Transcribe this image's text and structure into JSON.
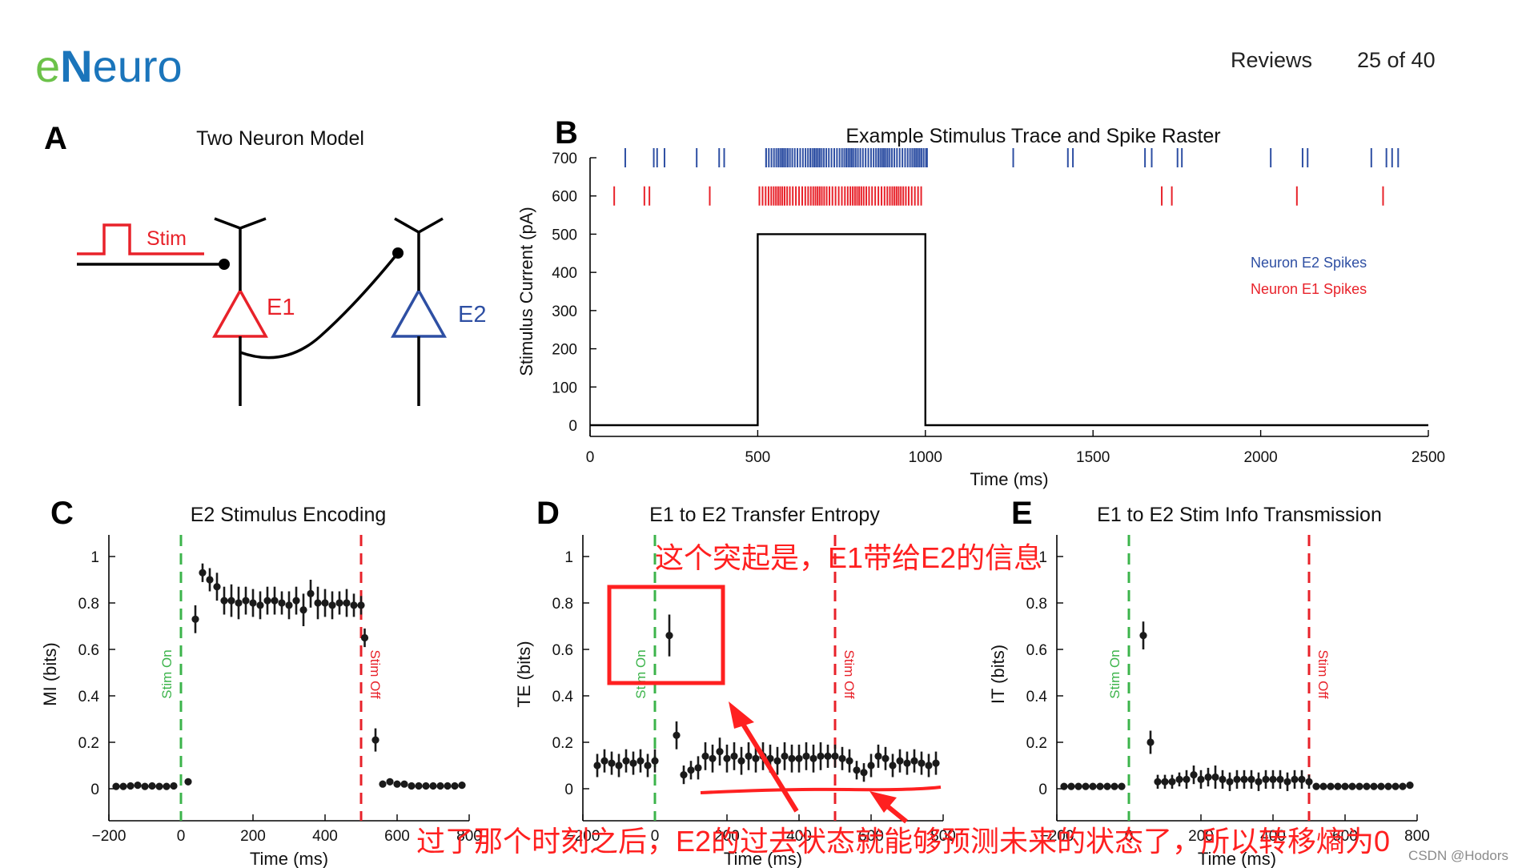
{
  "header": {
    "logo_e": "e",
    "logo_n": "N",
    "logo_rest": "euro",
    "section": "Reviews",
    "page": "25 of 40",
    "colors": {
      "logo_green": "#6cc24a",
      "logo_blue": "#1b75bb"
    }
  },
  "panels": {
    "a": {
      "letter": "A",
      "title": "Two Neuron Model",
      "stim_label": "Stim",
      "e1_label": "E1",
      "e2_label": "E2"
    },
    "b": {
      "letter": "B"
    },
    "c": {
      "letter": "C"
    },
    "d": {
      "letter": "D"
    },
    "e": {
      "letter": "E"
    }
  },
  "colors": {
    "e1_red": "#e8222a",
    "e2_blue": "#2e4fa3",
    "stim_on_green": "#3cb44b",
    "stim_off_red": "#e8222a",
    "point": "#1a1a1a",
    "annotation": "#ff2020"
  },
  "chart_data": [
    {
      "id": "B",
      "type": "line",
      "title": "Example Stimulus Trace and Spike Raster",
      "xlabel": "Time (ms)",
      "ylabel": "Stimulus Current (pA)",
      "xlim": [
        0,
        2500
      ],
      "ylim": [
        0,
        700
      ],
      "xticks": [
        0,
        500,
        1000,
        1500,
        2000,
        2500
      ],
      "yticks": [
        0,
        100,
        200,
        300,
        400,
        500,
        600,
        700
      ],
      "stimulus": {
        "x": [
          0,
          500,
          500,
          1000,
          1000,
          2500
        ],
        "y": [
          0,
          0,
          500,
          500,
          0,
          0
        ]
      },
      "legend": {
        "position": "right",
        "entries": [
          {
            "label": "Neuron E2 Spikes",
            "color": "#2e4fa3"
          },
          {
            "label": "Neuron E1 Spikes",
            "color": "#e8222a"
          }
        ]
      },
      "raster": [
        {
          "name": "Neuron E2 Spikes",
          "y": 700,
          "color": "#2e4fa3",
          "times": [
            105,
            190,
            200,
            222,
            318,
            385,
            400,
            525,
            1005,
            1262,
            1425,
            1440,
            1655,
            1675,
            1752,
            1765,
            2030,
            2125,
            2140,
            2330,
            2375,
            2392,
            2410
          ],
          "burst": {
            "start": 525,
            "end": 1005,
            "count": 72
          }
        },
        {
          "name": "Neuron E1 Spikes",
          "y": 600,
          "color": "#e8222a",
          "times": [
            72,
            162,
            177,
            357,
            1705,
            1735,
            2108,
            2365
          ],
          "burst": {
            "start": 505,
            "end": 985,
            "count": 62
          }
        }
      ]
    },
    {
      "id": "C",
      "type": "scatter",
      "title": "E2 Stimulus Encoding",
      "xlabel": "Time (ms)",
      "ylabel": "MI (bits)",
      "xlim": [
        -200,
        800
      ],
      "ylim": [
        0,
        1
      ],
      "xticks": [
        -200,
        0,
        200,
        400,
        600,
        800
      ],
      "yticks": [
        0,
        0.2,
        0.4,
        0.6,
        0.8,
        1
      ],
      "markers": [
        {
          "x": 0,
          "label": "Stim On",
          "color": "#3cb44b"
        },
        {
          "x": 500,
          "label": "Stim Off",
          "color": "#e8222a"
        }
      ],
      "points": [
        {
          "x": -180,
          "y": 0.01,
          "e": 0.01
        },
        {
          "x": -160,
          "y": 0.01,
          "e": 0.01
        },
        {
          "x": -140,
          "y": 0.012,
          "e": 0.01
        },
        {
          "x": -120,
          "y": 0.015,
          "e": 0.012
        },
        {
          "x": -100,
          "y": 0.01,
          "e": 0.01
        },
        {
          "x": -80,
          "y": 0.012,
          "e": 0.01
        },
        {
          "x": -60,
          "y": 0.01,
          "e": 0.01
        },
        {
          "x": -40,
          "y": 0.01,
          "e": 0.01
        },
        {
          "x": -20,
          "y": 0.012,
          "e": 0.01
        },
        {
          "x": 20,
          "y": 0.03,
          "e": 0.015
        },
        {
          "x": 40,
          "y": 0.73,
          "e": 0.06
        },
        {
          "x": 60,
          "y": 0.93,
          "e": 0.04
        },
        {
          "x": 80,
          "y": 0.9,
          "e": 0.05
        },
        {
          "x": 100,
          "y": 0.87,
          "e": 0.06
        },
        {
          "x": 120,
          "y": 0.81,
          "e": 0.06
        },
        {
          "x": 140,
          "y": 0.81,
          "e": 0.07
        },
        {
          "x": 160,
          "y": 0.8,
          "e": 0.07
        },
        {
          "x": 180,
          "y": 0.81,
          "e": 0.06
        },
        {
          "x": 200,
          "y": 0.8,
          "e": 0.06
        },
        {
          "x": 220,
          "y": 0.79,
          "e": 0.06
        },
        {
          "x": 240,
          "y": 0.81,
          "e": 0.06
        },
        {
          "x": 260,
          "y": 0.81,
          "e": 0.06
        },
        {
          "x": 280,
          "y": 0.8,
          "e": 0.05
        },
        {
          "x": 300,
          "y": 0.79,
          "e": 0.06
        },
        {
          "x": 320,
          "y": 0.81,
          "e": 0.06
        },
        {
          "x": 340,
          "y": 0.77,
          "e": 0.07
        },
        {
          "x": 360,
          "y": 0.84,
          "e": 0.06
        },
        {
          "x": 380,
          "y": 0.8,
          "e": 0.07
        },
        {
          "x": 400,
          "y": 0.8,
          "e": 0.06
        },
        {
          "x": 420,
          "y": 0.79,
          "e": 0.06
        },
        {
          "x": 440,
          "y": 0.8,
          "e": 0.05
        },
        {
          "x": 460,
          "y": 0.8,
          "e": 0.06
        },
        {
          "x": 480,
          "y": 0.79,
          "e": 0.05
        },
        {
          "x": 500,
          "y": 0.79,
          "e": 0.04
        },
        {
          "x": 510,
          "y": 0.65,
          "e": 0.04
        },
        {
          "x": 540,
          "y": 0.21,
          "e": 0.05
        },
        {
          "x": 560,
          "y": 0.02,
          "e": 0.015
        },
        {
          "x": 580,
          "y": 0.03,
          "e": 0.015
        },
        {
          "x": 600,
          "y": 0.02,
          "e": 0.015
        },
        {
          "x": 620,
          "y": 0.02,
          "e": 0.01
        },
        {
          "x": 640,
          "y": 0.012,
          "e": 0.01
        },
        {
          "x": 660,
          "y": 0.012,
          "e": 0.01
        },
        {
          "x": 680,
          "y": 0.012,
          "e": 0.01
        },
        {
          "x": 700,
          "y": 0.012,
          "e": 0.01
        },
        {
          "x": 720,
          "y": 0.012,
          "e": 0.01
        },
        {
          "x": 740,
          "y": 0.012,
          "e": 0.01
        },
        {
          "x": 760,
          "y": 0.012,
          "e": 0.01
        },
        {
          "x": 780,
          "y": 0.015,
          "e": 0.015
        }
      ]
    },
    {
      "id": "D",
      "type": "scatter",
      "title": "E1 to E2 Transfer Entropy",
      "xlabel": "Time (ms)",
      "ylabel": "TE (bits)",
      "xlim": [
        -200,
        800
      ],
      "ylim": [
        0,
        1
      ],
      "xticks": [
        -200,
        0,
        200,
        400,
        600,
        800
      ],
      "yticks": [
        0,
        0.2,
        0.4,
        0.6,
        0.8,
        1
      ],
      "markers": [
        {
          "x": 0,
          "label": "Stim On",
          "color": "#3cb44b"
        },
        {
          "x": 500,
          "label": "Stim Off",
          "color": "#e8222a"
        }
      ],
      "points": [
        {
          "x": -160,
          "y": 0.1,
          "e": 0.05
        },
        {
          "x": -140,
          "y": 0.12,
          "e": 0.05
        },
        {
          "x": -120,
          "y": 0.11,
          "e": 0.05
        },
        {
          "x": -100,
          "y": 0.1,
          "e": 0.05
        },
        {
          "x": -80,
          "y": 0.12,
          "e": 0.05
        },
        {
          "x": -60,
          "y": 0.11,
          "e": 0.05
        },
        {
          "x": -40,
          "y": 0.12,
          "e": 0.05
        },
        {
          "x": -20,
          "y": 0.1,
          "e": 0.05
        },
        {
          "x": 0,
          "y": 0.12,
          "e": 0.05
        },
        {
          "x": 40,
          "y": 0.66,
          "e": 0.09
        },
        {
          "x": 60,
          "y": 0.23,
          "e": 0.06
        },
        {
          "x": 80,
          "y": 0.06,
          "e": 0.04
        },
        {
          "x": 100,
          "y": 0.08,
          "e": 0.04
        },
        {
          "x": 120,
          "y": 0.09,
          "e": 0.05
        },
        {
          "x": 140,
          "y": 0.14,
          "e": 0.06
        },
        {
          "x": 160,
          "y": 0.13,
          "e": 0.06
        },
        {
          "x": 180,
          "y": 0.16,
          "e": 0.06
        },
        {
          "x": 200,
          "y": 0.13,
          "e": 0.06
        },
        {
          "x": 220,
          "y": 0.14,
          "e": 0.06
        },
        {
          "x": 240,
          "y": 0.12,
          "e": 0.06
        },
        {
          "x": 260,
          "y": 0.14,
          "e": 0.06
        },
        {
          "x": 280,
          "y": 0.13,
          "e": 0.06
        },
        {
          "x": 300,
          "y": 0.14,
          "e": 0.06
        },
        {
          "x": 320,
          "y": 0.13,
          "e": 0.06
        },
        {
          "x": 340,
          "y": 0.12,
          "e": 0.06
        },
        {
          "x": 360,
          "y": 0.14,
          "e": 0.06
        },
        {
          "x": 380,
          "y": 0.13,
          "e": 0.06
        },
        {
          "x": 400,
          "y": 0.13,
          "e": 0.06
        },
        {
          "x": 420,
          "y": 0.14,
          "e": 0.06
        },
        {
          "x": 440,
          "y": 0.13,
          "e": 0.06
        },
        {
          "x": 460,
          "y": 0.14,
          "e": 0.06
        },
        {
          "x": 480,
          "y": 0.14,
          "e": 0.05
        },
        {
          "x": 500,
          "y": 0.14,
          "e": 0.05
        },
        {
          "x": 520,
          "y": 0.13,
          "e": 0.05
        },
        {
          "x": 540,
          "y": 0.12,
          "e": 0.05
        },
        {
          "x": 560,
          "y": 0.08,
          "e": 0.04
        },
        {
          "x": 580,
          "y": 0.07,
          "e": 0.04
        },
        {
          "x": 600,
          "y": 0.1,
          "e": 0.05
        },
        {
          "x": 620,
          "y": 0.14,
          "e": 0.05
        },
        {
          "x": 640,
          "y": 0.13,
          "e": 0.05
        },
        {
          "x": 660,
          "y": 0.1,
          "e": 0.05
        },
        {
          "x": 680,
          "y": 0.12,
          "e": 0.05
        },
        {
          "x": 700,
          "y": 0.11,
          "e": 0.05
        },
        {
          "x": 720,
          "y": 0.12,
          "e": 0.05
        },
        {
          "x": 740,
          "y": 0.11,
          "e": 0.05
        },
        {
          "x": 760,
          "y": 0.1,
          "e": 0.05
        },
        {
          "x": 780,
          "y": 0.11,
          "e": 0.05
        }
      ]
    },
    {
      "id": "E",
      "type": "scatter",
      "title": "E1 to E2 Stim Info Transmission",
      "xlabel": "Time (ms)",
      "ylabel": "IT (bits)",
      "xlim": [
        -200,
        800
      ],
      "ylim": [
        0,
        1
      ],
      "xticks": [
        -200,
        0,
        200,
        400,
        600,
        800
      ],
      "yticks": [
        0,
        0.2,
        0.4,
        0.6,
        0.8,
        1
      ],
      "markers": [
        {
          "x": 0,
          "label": "Stim On",
          "color": "#3cb44b"
        },
        {
          "x": 500,
          "label": "Stim Off",
          "color": "#e8222a"
        }
      ],
      "points": [
        {
          "x": -180,
          "y": 0.01,
          "e": 0.01
        },
        {
          "x": -160,
          "y": 0.01,
          "e": 0.01
        },
        {
          "x": -140,
          "y": 0.01,
          "e": 0.01
        },
        {
          "x": -120,
          "y": 0.01,
          "e": 0.01
        },
        {
          "x": -100,
          "y": 0.01,
          "e": 0.01
        },
        {
          "x": -80,
          "y": 0.01,
          "e": 0.01
        },
        {
          "x": -60,
          "y": 0.01,
          "e": 0.01
        },
        {
          "x": -40,
          "y": 0.01,
          "e": 0.01
        },
        {
          "x": -20,
          "y": 0.01,
          "e": 0.01
        },
        {
          "x": 40,
          "y": 0.66,
          "e": 0.06
        },
        {
          "x": 60,
          "y": 0.2,
          "e": 0.05
        },
        {
          "x": 80,
          "y": 0.03,
          "e": 0.03
        },
        {
          "x": 100,
          "y": 0.03,
          "e": 0.03
        },
        {
          "x": 120,
          "y": 0.03,
          "e": 0.03
        },
        {
          "x": 140,
          "y": 0.04,
          "e": 0.03
        },
        {
          "x": 160,
          "y": 0.04,
          "e": 0.04
        },
        {
          "x": 180,
          "y": 0.06,
          "e": 0.04
        },
        {
          "x": 200,
          "y": 0.04,
          "e": 0.04
        },
        {
          "x": 220,
          "y": 0.05,
          "e": 0.04
        },
        {
          "x": 240,
          "y": 0.05,
          "e": 0.05
        },
        {
          "x": 260,
          "y": 0.04,
          "e": 0.04
        },
        {
          "x": 280,
          "y": 0.03,
          "e": 0.04
        },
        {
          "x": 300,
          "y": 0.04,
          "e": 0.04
        },
        {
          "x": 320,
          "y": 0.04,
          "e": 0.04
        },
        {
          "x": 340,
          "y": 0.04,
          "e": 0.04
        },
        {
          "x": 360,
          "y": 0.03,
          "e": 0.04
        },
        {
          "x": 380,
          "y": 0.04,
          "e": 0.04
        },
        {
          "x": 400,
          "y": 0.04,
          "e": 0.04
        },
        {
          "x": 420,
          "y": 0.04,
          "e": 0.04
        },
        {
          "x": 440,
          "y": 0.03,
          "e": 0.04
        },
        {
          "x": 460,
          "y": 0.04,
          "e": 0.04
        },
        {
          "x": 480,
          "y": 0.04,
          "e": 0.04
        },
        {
          "x": 500,
          "y": 0.03,
          "e": 0.03
        },
        {
          "x": 520,
          "y": 0.01,
          "e": 0.01
        },
        {
          "x": 540,
          "y": 0.01,
          "e": 0.01
        },
        {
          "x": 560,
          "y": 0.01,
          "e": 0.01
        },
        {
          "x": 580,
          "y": 0.01,
          "e": 0.01
        },
        {
          "x": 600,
          "y": 0.01,
          "e": 0.01
        },
        {
          "x": 620,
          "y": 0.01,
          "e": 0.01
        },
        {
          "x": 640,
          "y": 0.01,
          "e": 0.01
        },
        {
          "x": 660,
          "y": 0.01,
          "e": 0.01
        },
        {
          "x": 680,
          "y": 0.01,
          "e": 0.01
        },
        {
          "x": 700,
          "y": 0.01,
          "e": 0.01
        },
        {
          "x": 720,
          "y": 0.01,
          "e": 0.01
        },
        {
          "x": 740,
          "y": 0.01,
          "e": 0.01
        },
        {
          "x": 760,
          "y": 0.01,
          "e": 0.01
        },
        {
          "x": 780,
          "y": 0.015,
          "e": 0.01
        }
      ]
    }
  ],
  "annotations": {
    "peak_note": "这个突起是，E1带给E2的信息",
    "bottom_note": "过了那个时刻之后，E2的过去状态就能够预测未来的状态了，所以转移熵为0"
  },
  "watermark": "CSDN @Hodors"
}
